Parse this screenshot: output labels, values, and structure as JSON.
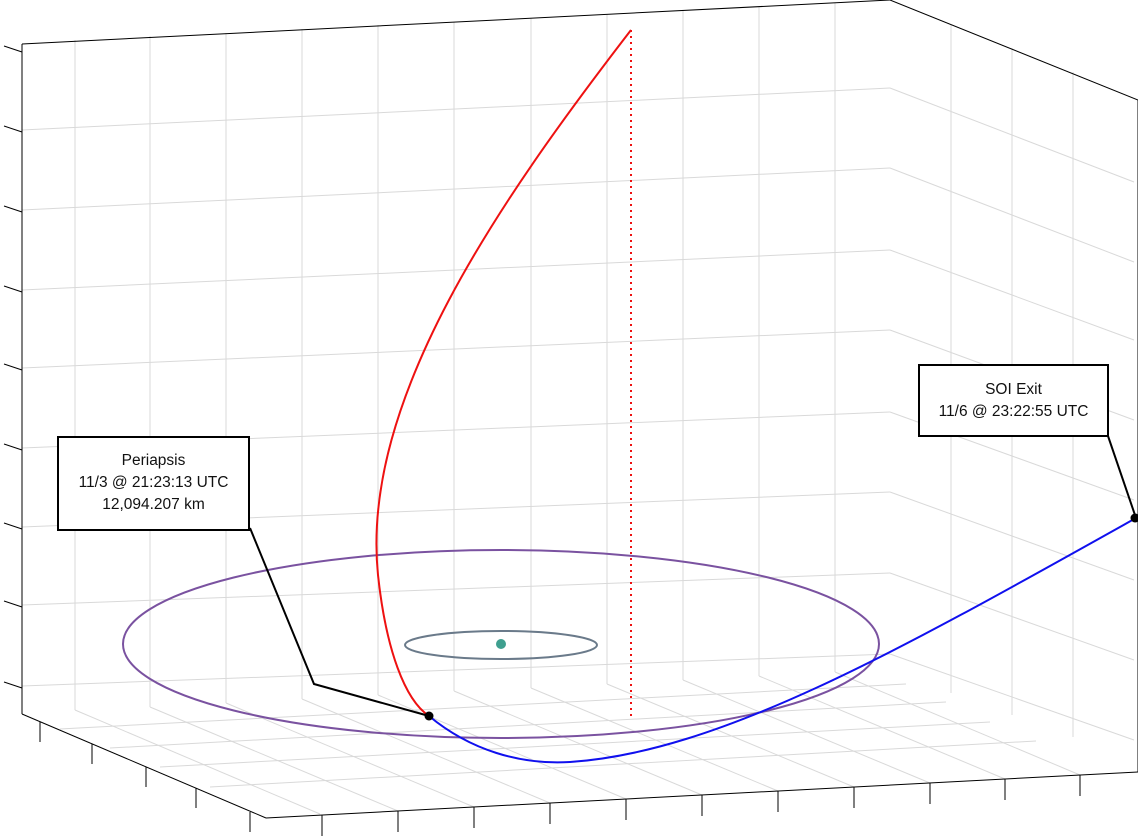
{
  "colors": {
    "background": "#ffffff",
    "grid": "#d9d9d9",
    "axis": "#000000",
    "approach_trajectory": "#ee1111",
    "departure_trajectory": "#1010ee",
    "moon_orbit": "#7a52a0",
    "inner_orbit": "#6a7a8a",
    "central_body": "#3f9f8f",
    "marker": "#000000",
    "vertical_guide": "#ee1111"
  },
  "annotations": {
    "periapsis": {
      "title": "Periapsis",
      "time": "11/3 @ 21:23:13 UTC",
      "altitude": "12,094.207 km"
    },
    "soi_exit": {
      "title": "SOI Exit",
      "time": "11/6 @ 23:22:55 UTC"
    }
  },
  "legend_markers": [
    "periapsis-marker",
    "soi-exit-marker"
  ]
}
